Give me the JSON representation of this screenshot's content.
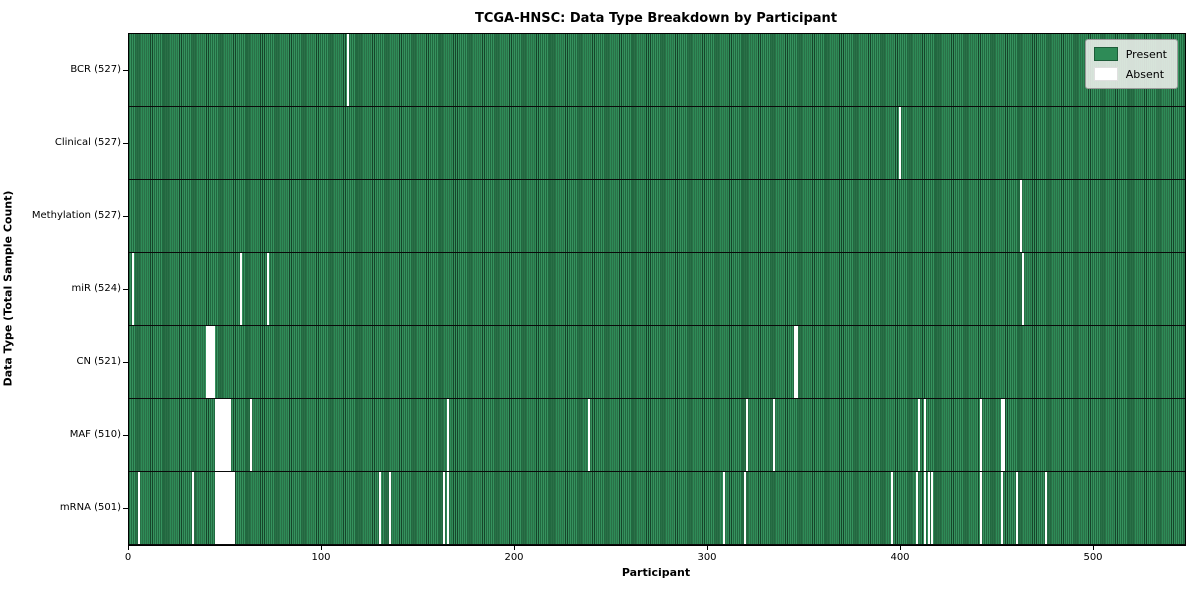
{
  "title": "TCGA-HNSC: Data Type Breakdown by Participant",
  "xlabel": "Participant",
  "ylabel": "Data Type (Total Sample Count)",
  "legend": {
    "present_label": "Present",
    "absent_label": "Absent"
  },
  "colors": {
    "present": "#2e8b57",
    "present_edge": "#16452a",
    "absent": "#ffffff",
    "legend_bg": "#e5eae5",
    "border": "#000000"
  },
  "chart_data": {
    "type": "heatmap",
    "title": "TCGA-HNSC: Data Type Breakdown by Participant",
    "xlabel": "Participant",
    "ylabel": "Data Type (Total Sample Count)",
    "legend_entries": [
      "Present",
      "Absent"
    ],
    "legend_position": "upper right",
    "x_ticks": [
      0,
      100,
      200,
      300,
      400,
      500
    ],
    "x_range": [
      0,
      547
    ],
    "n_participants": 528,
    "cell_states": [
      "present",
      "absent"
    ],
    "rows": [
      {
        "label": "BCR (527)",
        "data_type": "BCR",
        "total_samples": 527,
        "absent_participants": [
          113
        ]
      },
      {
        "label": "Clinical (527)",
        "data_type": "Clinical",
        "total_samples": 527,
        "absent_participants": [
          399
        ]
      },
      {
        "label": "Methylation (527)",
        "data_type": "Methylation",
        "total_samples": 527,
        "absent_participants": [
          462
        ]
      },
      {
        "label": "miR (524)",
        "data_type": "miR",
        "total_samples": 524,
        "absent_participants": [
          2,
          58,
          72,
          463
        ]
      },
      {
        "label": "CN (521)",
        "data_type": "CN",
        "total_samples": 521,
        "absent_participants": [
          40,
          41,
          42,
          43,
          44,
          345,
          346
        ]
      },
      {
        "label": "MAF (510)",
        "data_type": "MAF",
        "total_samples": 510,
        "absent_participants": [
          45,
          46,
          47,
          48,
          49,
          50,
          51,
          52,
          63,
          165,
          238,
          320,
          334,
          409,
          412,
          441,
          452,
          453
        ]
      },
      {
        "label": "mRNA (501)",
        "data_type": "mRNA",
        "total_samples": 501,
        "absent_participants": [
          5,
          33,
          45,
          46,
          47,
          48,
          49,
          50,
          51,
          52,
          53,
          54,
          130,
          135,
          163,
          165,
          308,
          319,
          395,
          408,
          412,
          414,
          416,
          441,
          452,
          460,
          475
        ]
      }
    ]
  }
}
